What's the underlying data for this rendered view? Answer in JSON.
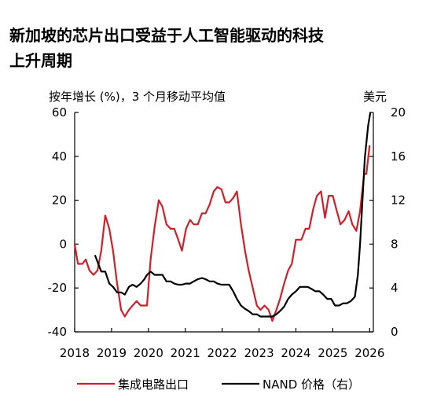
{
  "chart_data": {
    "type": "line",
    "title_lines": [
      "新加坡的芯片出口受益于人工智能驱动的科技",
      "上升周期"
    ],
    "ylabel": "按年增长 (%)，3 个月移动平均值",
    "y2label": "美元",
    "xlim": [
      2018,
      2026.1
    ],
    "xticks": [
      2018,
      2019,
      2020,
      2021,
      2022,
      2023,
      2024,
      2025,
      2026
    ],
    "ylim": [
      -40,
      60
    ],
    "yticks": [
      -40,
      -20,
      0,
      20,
      40,
      60
    ],
    "y2lim": [
      0,
      20
    ],
    "y2ticks": [
      0,
      4,
      8,
      12,
      16,
      20
    ],
    "legend": "bottom",
    "series": [
      {
        "name": "集成电路出口",
        "color": "#d11f2a",
        "x": [
          2018.0,
          2018.09,
          2018.21,
          2018.3,
          2018.4,
          2018.51,
          2018.62,
          2018.72,
          2018.83,
          2018.94,
          2019.04,
          2019.15,
          2019.26,
          2019.36,
          2019.47,
          2019.57,
          2019.68,
          2019.79,
          2019.96,
          2020.06,
          2020.17,
          2020.28,
          2020.38,
          2020.49,
          2020.6,
          2020.7,
          2020.81,
          2020.91,
          2021.02,
          2021.13,
          2021.23,
          2021.34,
          2021.45,
          2021.55,
          2021.66,
          2021.77,
          2021.87,
          2021.98,
          2022.09,
          2022.19,
          2022.3,
          2022.4,
          2022.51,
          2022.62,
          2022.72,
          2022.83,
          2022.94,
          2023.04,
          2023.15,
          2023.26,
          2023.36,
          2023.47,
          2023.57,
          2023.68,
          2023.79,
          2023.89,
          2024.0,
          2024.15,
          2024.26,
          2024.36,
          2024.47,
          2024.57,
          2024.68,
          2024.79,
          2024.89,
          2025.0,
          2025.11,
          2025.21,
          2025.32,
          2025.43,
          2025.53,
          2025.64,
          2025.74,
          2025.85,
          2025.91,
          2026.0
        ],
        "values": [
          0,
          -9,
          -9,
          -7,
          -12,
          -14,
          -12,
          -3,
          13,
          7,
          -3,
          -18,
          -30,
          -33,
          -30,
          -28,
          -26,
          -28,
          -28,
          -7,
          8,
          20,
          17,
          9,
          7,
          7,
          2,
          -3,
          7,
          11,
          9,
          9,
          14,
          14,
          18,
          24,
          26,
          25,
          19,
          19,
          21,
          24,
          9,
          -3,
          -12,
          -20,
          -28,
          -30,
          -28,
          -30,
          -35,
          -30,
          -25,
          -18,
          -12,
          -9,
          2,
          2,
          7,
          7,
          16,
          22,
          24,
          12,
          22,
          22,
          15,
          9,
          11,
          15,
          9,
          6,
          15,
          32,
          32,
          45
        ]
      },
      {
        "name": "NAND 价格（右）",
        "color": "#000000",
        "axis": "y2",
        "x": [
          2018.55,
          2018.72,
          2018.83,
          2018.94,
          2019.04,
          2019.15,
          2019.26,
          2019.36,
          2019.47,
          2019.57,
          2019.68,
          2019.79,
          2019.89,
          2019.96,
          2020.06,
          2020.17,
          2020.28,
          2020.38,
          2020.49,
          2020.6,
          2020.7,
          2020.81,
          2020.91,
          2021.02,
          2021.13,
          2021.23,
          2021.34,
          2021.45,
          2021.55,
          2021.66,
          2021.77,
          2021.87,
          2021.98,
          2022.09,
          2022.19,
          2022.3,
          2022.4,
          2022.51,
          2022.62,
          2022.72,
          2022.83,
          2022.94,
          2023.04,
          2023.15,
          2023.26,
          2023.36,
          2023.47,
          2023.57,
          2023.68,
          2023.79,
          2023.89,
          2024.0,
          2024.11,
          2024.21,
          2024.32,
          2024.43,
          2024.53,
          2024.64,
          2024.74,
          2024.85,
          2024.96,
          2025.06,
          2025.17,
          2025.28,
          2025.38,
          2025.49,
          2025.6,
          2025.68,
          2025.74,
          2025.81,
          2025.87,
          2025.96,
          2026.02
        ],
        "values": [
          7.0,
          5.5,
          5.5,
          4.4,
          4.1,
          3.6,
          3.6,
          3.4,
          4.1,
          4.3,
          4.1,
          4.4,
          4.8,
          5.2,
          5.5,
          5.2,
          5.2,
          5.2,
          4.6,
          4.6,
          4.4,
          4.3,
          4.3,
          4.4,
          4.4,
          4.6,
          4.8,
          4.9,
          4.8,
          4.6,
          4.6,
          4.4,
          4.3,
          4.3,
          4.3,
          3.7,
          3.0,
          2.4,
          2.1,
          1.9,
          1.6,
          1.6,
          1.4,
          1.4,
          1.4,
          1.4,
          1.6,
          1.9,
          2.3,
          3.0,
          3.4,
          3.7,
          4.1,
          4.1,
          4.1,
          3.9,
          3.7,
          3.7,
          3.4,
          3.0,
          3.0,
          2.4,
          2.4,
          2.6,
          2.6,
          2.8,
          3.2,
          5.2,
          8.0,
          12.3,
          15.9,
          18.8,
          20
        ]
      }
    ]
  }
}
